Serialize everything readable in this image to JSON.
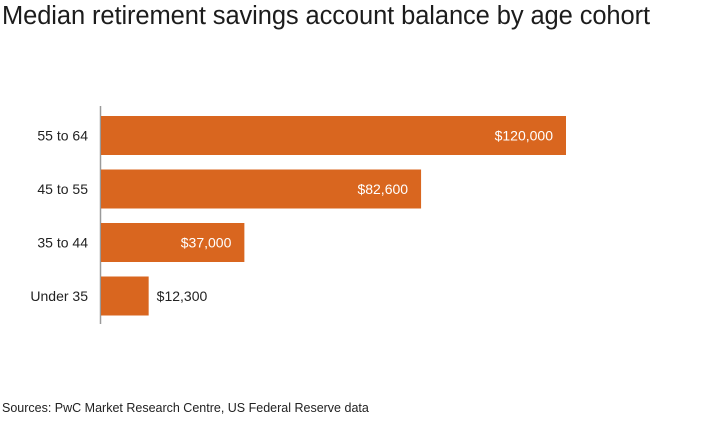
{
  "chart_data": {
    "type": "bar",
    "orientation": "horizontal",
    "title": "Median retirement savings account balance by age cohort",
    "categories": [
      "55 to 64",
      "45 to 55",
      "35 to 44",
      "Under 35"
    ],
    "values": [
      120000,
      82600,
      37000,
      12300
    ],
    "data_labels": [
      "$120,000",
      "$82,600",
      "$37,000",
      "$12,300"
    ],
    "xlim": [
      0,
      120000
    ],
    "grid": false,
    "legend": "none",
    "bar_color": "#d9661f",
    "inside_label_color": "#ffffff",
    "outside_label_color": "#222222",
    "source": "Sources: PwC Market Research Centre, US Federal Reserve data"
  }
}
